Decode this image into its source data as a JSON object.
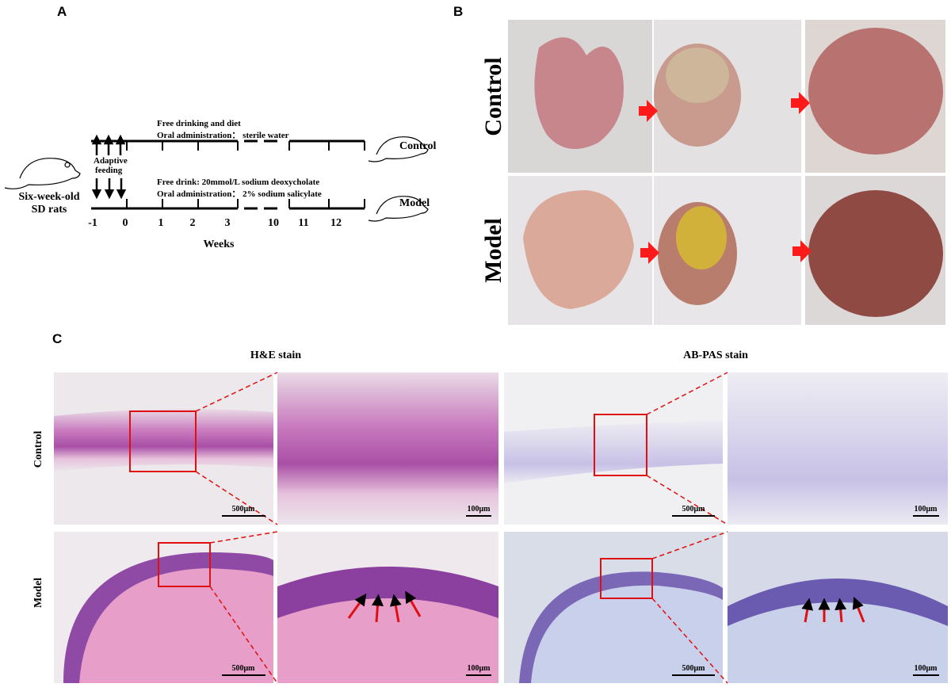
{
  "panel_a": {
    "label": "A",
    "control_conditions": [
      "Free drinking and diet",
      "Oral administration： sterile water"
    ],
    "model_conditions": [
      "Free drink: 20mmol/L sodium deoxycholate",
      "Oral administration： 2% sodium salicylate"
    ],
    "adaptive": [
      "Adaptive",
      "feeding"
    ],
    "subject": [
      "Six-week-old",
      "SD rats"
    ],
    "groups": [
      "Control",
      "Model"
    ],
    "week_labels": [
      -1,
      0,
      1,
      2,
      3,
      10,
      11,
      12
    ],
    "axis_label": "Weeks"
  },
  "panel_b": {
    "label": "B",
    "rows": [
      "Control",
      "Model"
    ]
  },
  "panel_c": {
    "label": "C",
    "columns": [
      "H&E stain",
      "AB-PAS stain"
    ],
    "rows": [
      "Control",
      "Model"
    ],
    "scale_bars": [
      [
        "500μm",
        "100μm",
        "500μm",
        "100μm"
      ],
      [
        "500μm",
        "100μm",
        "500μm",
        "100μm"
      ]
    ]
  }
}
